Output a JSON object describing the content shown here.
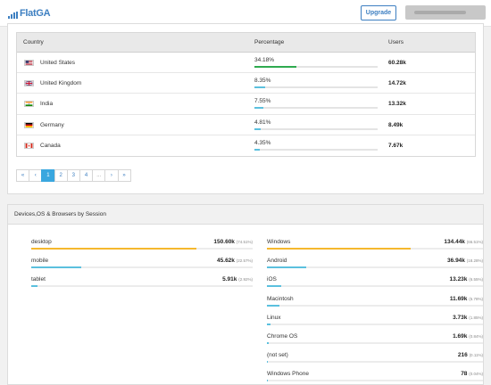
{
  "app": {
    "logo_text": "FlatGA",
    "upgrade_label": "Upgrade"
  },
  "countries": {
    "columns": {
      "country": "Country",
      "percentage": "Percentage",
      "users": "Users"
    },
    "rows": [
      {
        "name": "United States",
        "flag": "us-flag-icon",
        "percentage": "34.18%",
        "share": 34.18,
        "users": "60.28k"
      },
      {
        "name": "United Kingdom",
        "flag": "uk-flag-icon",
        "percentage": "8.35%",
        "share": 8.35,
        "users": "14.72k"
      },
      {
        "name": "India",
        "flag": "india-flag-icon",
        "percentage": "7.55%",
        "share": 7.55,
        "users": "13.32k"
      },
      {
        "name": "Germany",
        "flag": "germany-flag-icon",
        "percentage": "4.81%",
        "share": 4.81,
        "users": "8.49k"
      },
      {
        "name": "Canada",
        "flag": "canada-flag-icon",
        "percentage": "4.35%",
        "share": 4.35,
        "users": "7.67k"
      }
    ],
    "pagination": [
      "«",
      "‹",
      "1",
      "2",
      "3",
      "4",
      "...",
      "›",
      "»"
    ],
    "active_page": "1"
  },
  "devices": {
    "title": "Devices,OS & Browsers by Session",
    "device_list": [
      {
        "label": "desktop",
        "value": "150.60k",
        "percent": "(74.51%)",
        "share": 74.51
      },
      {
        "label": "mobile",
        "value": "45.62k",
        "percent": "(22.57%)",
        "share": 22.57
      },
      {
        "label": "tablet",
        "value": "5.91k",
        "percent": "(2.92%)",
        "share": 2.92
      }
    ],
    "os_list": [
      {
        "label": "Windows",
        "value": "134.44k",
        "percent": "(66.51%)",
        "share": 66.51
      },
      {
        "label": "Android",
        "value": "36.94k",
        "percent": "(18.28%)",
        "share": 18.28
      },
      {
        "label": "iOS",
        "value": "13.23k",
        "percent": "(6.55%)",
        "share": 6.55
      },
      {
        "label": "Macintosh",
        "value": "11.69k",
        "percent": "(5.78%)",
        "share": 5.78
      },
      {
        "label": "Linux",
        "value": "3.73k",
        "percent": "(1.85%)",
        "share": 1.85
      },
      {
        "label": "Chrome OS",
        "value": "1.69k",
        "percent": "(0.84%)",
        "share": 0.84
      },
      {
        "label": "(not set)",
        "value": "216",
        "percent": "(0.11%)",
        "share": 0.11
      },
      {
        "label": "Windows Phone",
        "value": "78",
        "percent": "(0.04%)",
        "share": 0.04
      }
    ]
  },
  "colors": {
    "accent": "#3d7fc1",
    "bar_blue": "#5bc0de",
    "bar_green": "#2eaa4f",
    "bar_gold": "#f5b82e",
    "page_active": "#3aa7df"
  }
}
